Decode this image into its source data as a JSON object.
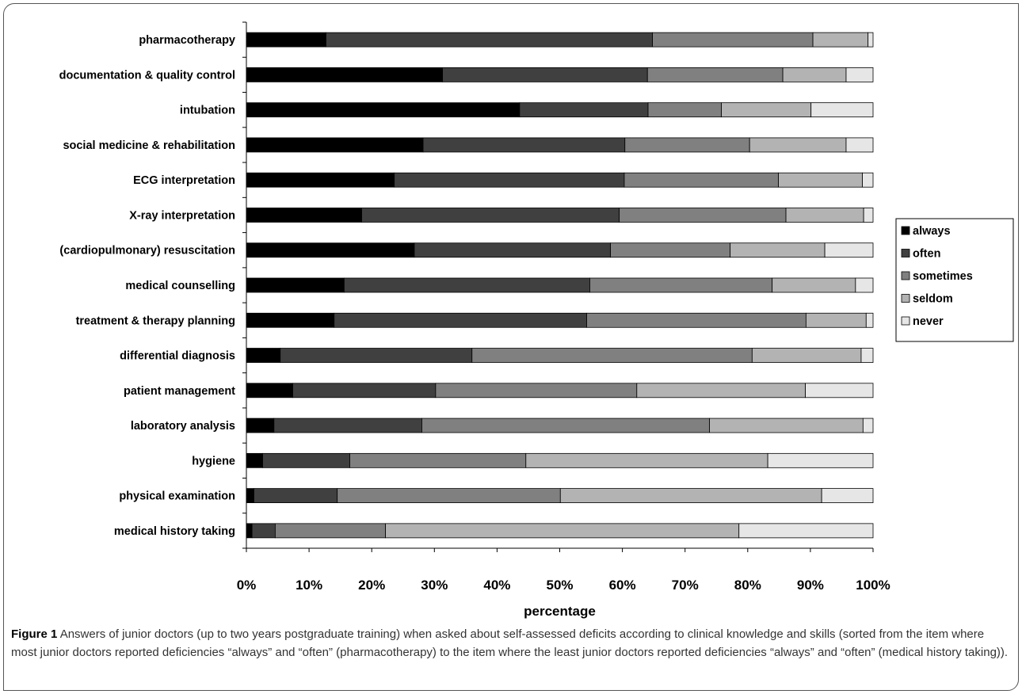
{
  "chart_data": {
    "type": "bar",
    "orientation": "horizontal",
    "stacked": true,
    "percent_stacked": true,
    "categories": [
      "pharmacotherapy",
      "documentation & quality control",
      "intubation",
      "social medicine & rehabilitation",
      "ECG interpretation",
      "X-ray interpretation",
      "(cardiopulmonary) resuscitation",
      "medical counselling",
      "treatment & therapy planning",
      "differential diagnosis",
      "patient management",
      "laboratory analysis",
      "hygiene",
      "physical examination",
      "medical history taking"
    ],
    "series": [
      {
        "name": "always",
        "color": "#000000",
        "values": [
          12.7,
          31.3,
          43.6,
          28.2,
          23.6,
          18.4,
          26.8,
          15.6,
          14.0,
          5.4,
          7.4,
          4.4,
          2.6,
          1.2,
          0.9
        ]
      },
      {
        "name": "often",
        "color": "#404040",
        "values": [
          52.1,
          32.7,
          20.5,
          32.2,
          36.7,
          41.1,
          31.3,
          39.2,
          40.3,
          30.6,
          22.8,
          23.6,
          13.9,
          13.3,
          3.7
        ]
      },
      {
        "name": "sometimes",
        "color": "#808080",
        "values": [
          25.6,
          21.6,
          11.7,
          19.9,
          24.6,
          26.6,
          19.1,
          29.1,
          35.0,
          44.7,
          32.1,
          45.9,
          28.1,
          35.6,
          17.6
        ]
      },
      {
        "name": "seldom",
        "color": "#b3b3b3",
        "values": [
          8.8,
          10.1,
          14.3,
          15.4,
          13.4,
          12.4,
          15.1,
          13.3,
          9.6,
          17.4,
          26.9,
          24.5,
          38.6,
          41.7,
          56.4
        ]
      },
      {
        "name": "never",
        "color": "#e6e6e6",
        "values": [
          0.8,
          4.3,
          9.9,
          4.3,
          1.7,
          1.5,
          7.7,
          2.8,
          1.1,
          1.9,
          10.8,
          1.6,
          16.8,
          8.2,
          21.4
        ]
      }
    ],
    "x_ticks": [
      "0%",
      "10%",
      "20%",
      "30%",
      "40%",
      "50%",
      "60%",
      "70%",
      "80%",
      "90%",
      "100%"
    ],
    "xlim": [
      0,
      100
    ],
    "xlabel": "percentage",
    "ylabel": "",
    "title": "",
    "grid": false,
    "legend_position": "right"
  },
  "caption": {
    "label": "Figure 1",
    "text": "Answers of junior doctors (up to two years postgraduate training) when asked about self-assessed deficits according to clinical knowledge and skills (sorted from the item where most junior doctors reported deficiencies “always” and “often” (pharmacotherapy) to the item where the least junior doctors reported deficiencies “always” and “often” (medical history taking))."
  }
}
